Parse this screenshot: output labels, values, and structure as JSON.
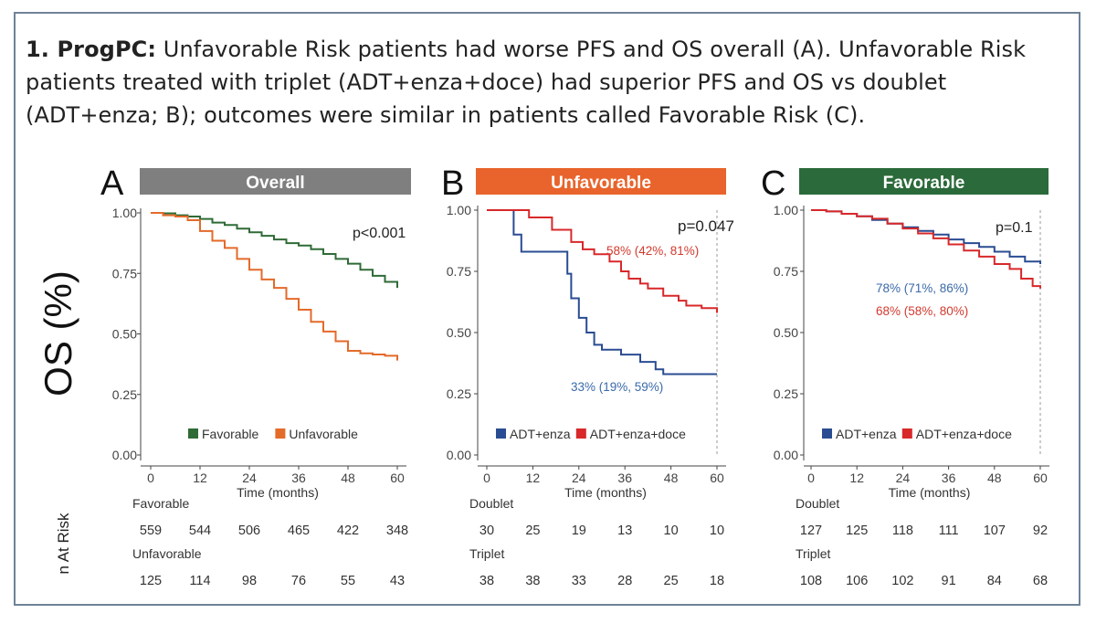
{
  "caption": {
    "bold": "1. ProgPC:",
    "text": " Unfavorable Risk patients had worse PFS and OS overall (A). Unfavorable Risk patients treated with triplet (ADT+enza+doce) had superior PFS and OS vs doublet (ADT+enza; B); outcomes were similar in patients called Favorable Risk (C)."
  },
  "y_axis_label": "OS (%)",
  "risk_label": "n At Risk",
  "colors": {
    "gray_header": "#7f7f7f",
    "orange_header": "#e8642c",
    "green_header": "#2b6a3a",
    "favorable_line": "#2f6b36",
    "unfavorable_line": "#e46a2a",
    "doublet_line": "#2a4c92",
    "triplet_line": "#d8282a",
    "doublet_annot": "#3a6aa8",
    "triplet_annot": "#d23a2e"
  },
  "chart_data": [
    {
      "type": "line",
      "panel_letter": "A",
      "title": "Overall",
      "xlabel": "Time (months)",
      "ylabel": "OS (%)",
      "xlim": [
        0,
        60
      ],
      "ylim": [
        0,
        1
      ],
      "x_ticks": [
        "0",
        "12",
        "24",
        "36",
        "48",
        "60"
      ],
      "y_ticks": [
        "0.00",
        "0.25",
        "0.50",
        "0.75",
        "1.00"
      ],
      "pvalue": "p<0.001",
      "legend_position": "bottom-center",
      "series": [
        {
          "name": "Favorable",
          "x": [
            0,
            3,
            6,
            9,
            12,
            15,
            18,
            21,
            24,
            27,
            30,
            33,
            36,
            39,
            42,
            45,
            48,
            51,
            54,
            57,
            60
          ],
          "y": [
            1.0,
            0.998,
            0.99,
            0.985,
            0.975,
            0.96,
            0.95,
            0.935,
            0.92,
            0.905,
            0.89,
            0.875,
            0.865,
            0.85,
            0.83,
            0.81,
            0.79,
            0.765,
            0.74,
            0.715,
            0.69
          ]
        },
        {
          "name": "Unfavorable",
          "x": [
            0,
            3,
            6,
            9,
            12,
            15,
            18,
            21,
            24,
            27,
            30,
            33,
            36,
            39,
            42,
            45,
            48,
            51,
            54,
            57,
            60
          ],
          "y": [
            1.0,
            0.99,
            0.985,
            0.97,
            0.925,
            0.885,
            0.855,
            0.81,
            0.765,
            0.725,
            0.69,
            0.645,
            0.6,
            0.55,
            0.51,
            0.47,
            0.43,
            0.42,
            0.415,
            0.41,
            0.39
          ]
        }
      ],
      "risk_table": [
        {
          "group": "Favorable",
          "counts": [
            "559",
            "544",
            "506",
            "465",
            "422",
            "348"
          ]
        },
        {
          "group": "Unfavorable",
          "counts": [
            "125",
            "114",
            "98",
            "76",
            "55",
            "43"
          ]
        }
      ]
    },
    {
      "type": "line",
      "panel_letter": "B",
      "title": "Unfavorable",
      "xlabel": "Time (months)",
      "xlim": [
        0,
        60
      ],
      "ylim": [
        0,
        1
      ],
      "x_ticks": [
        "0",
        "12",
        "24",
        "36",
        "48",
        "60"
      ],
      "y_ticks": [
        "0.00",
        "0.25",
        "0.50",
        "0.75",
        "1.00"
      ],
      "pvalue": "p=0.047",
      "legend_position": "bottom-center",
      "series": [
        {
          "name": "ADT+enza",
          "x": [
            0,
            7,
            9,
            21,
            22,
            24,
            26,
            28,
            30,
            35,
            40,
            44,
            46,
            60
          ],
          "y": [
            1.0,
            0.9,
            0.83,
            0.74,
            0.64,
            0.56,
            0.5,
            0.45,
            0.43,
            0.41,
            0.38,
            0.35,
            0.33,
            0.33
          ],
          "annotation": "33% (19%, 59%)"
        },
        {
          "name": "ADT+enza+doce",
          "x": [
            0,
            5,
            11,
            17,
            22,
            25,
            28,
            32,
            35,
            37,
            40,
            42,
            46,
            50,
            52,
            54,
            56,
            60
          ],
          "y": [
            1.0,
            1.0,
            0.97,
            0.92,
            0.87,
            0.84,
            0.82,
            0.79,
            0.75,
            0.72,
            0.7,
            0.68,
            0.65,
            0.63,
            0.61,
            0.61,
            0.6,
            0.58
          ],
          "annotation": "58% (42%, 81%)"
        }
      ],
      "risk_table": [
        {
          "group": "Doublet",
          "counts": [
            "30",
            "25",
            "19",
            "13",
            "10",
            "10"
          ]
        },
        {
          "group": "Triplet",
          "counts": [
            "38",
            "38",
            "33",
            "28",
            "25",
            "18"
          ]
        }
      ]
    },
    {
      "type": "line",
      "panel_letter": "C",
      "title": "Favorable",
      "xlabel": "Time (months)",
      "xlim": [
        0,
        60
      ],
      "ylim": [
        0,
        1
      ],
      "x_ticks": [
        "0",
        "12",
        "24",
        "36",
        "48",
        "60"
      ],
      "y_ticks": [
        "0.00",
        "0.25",
        "0.50",
        "0.75",
        "1.00"
      ],
      "pvalue": "p=0.1",
      "legend_position": "bottom-center",
      "series": [
        {
          "name": "ADT+enza",
          "x": [
            0,
            4,
            8,
            12,
            16,
            20,
            24,
            28,
            32,
            36,
            40,
            44,
            48,
            52,
            56,
            60
          ],
          "y": [
            1.0,
            0.995,
            0.985,
            0.975,
            0.96,
            0.945,
            0.93,
            0.915,
            0.9,
            0.88,
            0.865,
            0.85,
            0.83,
            0.81,
            0.79,
            0.78
          ],
          "annotation": "78% (71%, 86%)"
        },
        {
          "name": "ADT+enza+doce",
          "x": [
            0,
            4,
            8,
            12,
            16,
            20,
            24,
            28,
            32,
            36,
            40,
            44,
            48,
            52,
            55,
            58,
            60
          ],
          "y": [
            1.0,
            0.995,
            0.985,
            0.975,
            0.965,
            0.945,
            0.925,
            0.905,
            0.885,
            0.86,
            0.835,
            0.81,
            0.78,
            0.76,
            0.72,
            0.69,
            0.68
          ],
          "annotation": "68% (58%, 80%)"
        }
      ],
      "risk_table": [
        {
          "group": "Doublet",
          "counts": [
            "127",
            "125",
            "118",
            "111",
            "107",
            "92"
          ]
        },
        {
          "group": "Triplet",
          "counts": [
            "108",
            "106",
            "102",
            "91",
            "84",
            "68"
          ]
        }
      ]
    }
  ]
}
